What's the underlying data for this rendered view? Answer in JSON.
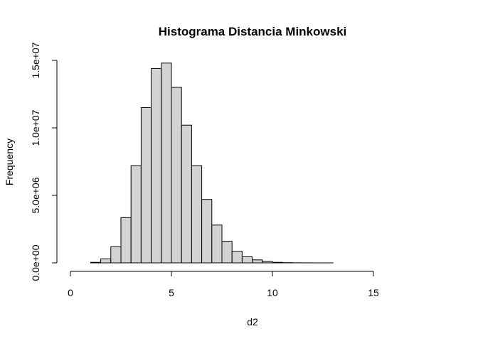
{
  "chart_data": {
    "type": "bar",
    "title": "Histograma Distancia Minkowski",
    "xlabel": "d2",
    "ylabel": "Frequency",
    "bin_width": 0.5,
    "bin_starts": [
      0,
      0.5,
      1,
      1.5,
      2,
      2.5,
      3,
      3.5,
      4,
      4.5,
      5,
      5.5,
      6,
      6.5,
      7,
      7.5,
      8,
      8.5,
      9,
      9.5,
      10,
      10.5,
      11,
      11.5,
      12,
      12.5,
      13,
      13.5,
      14,
      14.5,
      15,
      15.5,
      16,
      16.5,
      17,
      17.5
    ],
    "values": [
      0,
      0,
      40000,
      300000,
      1200000,
      3350000,
      7200000,
      11500000,
      14400000,
      14800000,
      13000000,
      10200000,
      7200000,
      4700000,
      2800000,
      1600000,
      850000,
      450000,
      220000,
      100000,
      40000,
      15000,
      5000,
      2000,
      1000,
      500,
      200,
      100,
      50,
      20,
      10,
      5,
      2,
      1,
      1,
      1
    ],
    "xlim": [
      0,
      18
    ],
    "ylim": [
      0,
      15000000
    ],
    "x_ticks": [
      0,
      5,
      10,
      15
    ],
    "x_tick_labels": [
      "0",
      "5",
      "10",
      "15"
    ],
    "y_ticks": [
      0,
      5000000,
      10000000,
      15000000
    ],
    "y_tick_labels": [
      "0.0e+00",
      "5.0e+06",
      "1.0e+07",
      "1.5e+07"
    ],
    "bar_fill": "#d3d3d3",
    "bar_stroke": "#000000",
    "grid": false
  }
}
